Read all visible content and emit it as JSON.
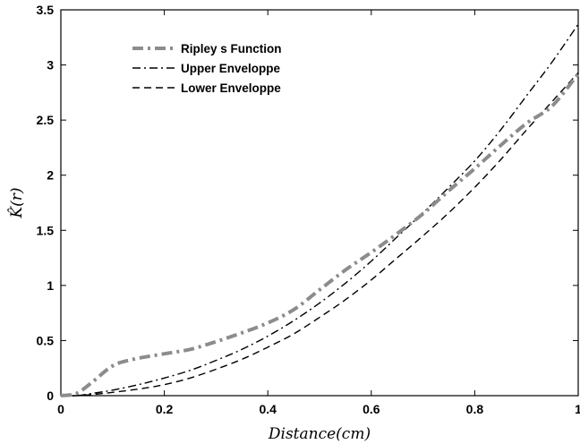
{
  "chart_data": {
    "type": "line",
    "title": "",
    "xlabel": "Distance(cm)",
    "ylabel": "K̂(r)",
    "xlim": [
      0,
      1
    ],
    "ylim": [
      0,
      3.5
    ],
    "x_ticks": [
      "0",
      "0.2",
      "0.4",
      "0.6",
      "0.8",
      "1"
    ],
    "y_ticks": [
      "0",
      "0.5",
      "1",
      "1.5",
      "2",
      "2.5",
      "3",
      "3.5"
    ],
    "grid": false,
    "legend_position": "top-left",
    "series": [
      {
        "name": "Ripley s Function",
        "style": "dash-dot-thick",
        "color": "#8c8c8c",
        "x": [
          0,
          0.03,
          0.06,
          0.1,
          0.14,
          0.2,
          0.25,
          0.3,
          0.35,
          0.4,
          0.45,
          0.5,
          0.55,
          0.6,
          0.65,
          0.7,
          0.75,
          0.8,
          0.85,
          0.9,
          0.95,
          1.0
        ],
        "y": [
          0,
          0.02,
          0.12,
          0.27,
          0.33,
          0.38,
          0.42,
          0.49,
          0.57,
          0.66,
          0.78,
          0.96,
          1.14,
          1.3,
          1.47,
          1.65,
          1.86,
          2.06,
          2.27,
          2.47,
          2.63,
          2.92
        ]
      },
      {
        "name": "Upper Envelope",
        "style": "dash-dot-thin",
        "color": "#000000",
        "x": [
          0,
          0.03,
          0.06,
          0.1,
          0.15,
          0.2,
          0.25,
          0.3,
          0.35,
          0.4,
          0.45,
          0.5,
          0.55,
          0.6,
          0.65,
          0.7,
          0.75,
          0.8,
          0.85,
          0.9,
          0.95,
          1.0
        ],
        "y": [
          0,
          0.0,
          0.02,
          0.05,
          0.1,
          0.16,
          0.23,
          0.32,
          0.42,
          0.54,
          0.68,
          0.84,
          1.02,
          1.22,
          1.44,
          1.66,
          1.89,
          2.13,
          2.41,
          2.72,
          3.03,
          3.37
        ]
      },
      {
        "name": "Lower Envelope",
        "style": "dashed",
        "color": "#000000",
        "x": [
          0,
          0.03,
          0.06,
          0.1,
          0.15,
          0.2,
          0.25,
          0.3,
          0.35,
          0.4,
          0.45,
          0.5,
          0.55,
          0.6,
          0.65,
          0.7,
          0.75,
          0.8,
          0.85,
          0.9,
          0.95,
          1.0
        ],
        "y": [
          0,
          0.0,
          0.01,
          0.03,
          0.06,
          0.1,
          0.16,
          0.24,
          0.33,
          0.44,
          0.56,
          0.71,
          0.87,
          1.05,
          1.25,
          1.45,
          1.66,
          1.89,
          2.14,
          2.41,
          2.67,
          2.93
        ]
      }
    ],
    "legend_entries": [
      "Ripley s Function",
      "Upper Enveloppe",
      "Lower Enveloppe"
    ]
  }
}
